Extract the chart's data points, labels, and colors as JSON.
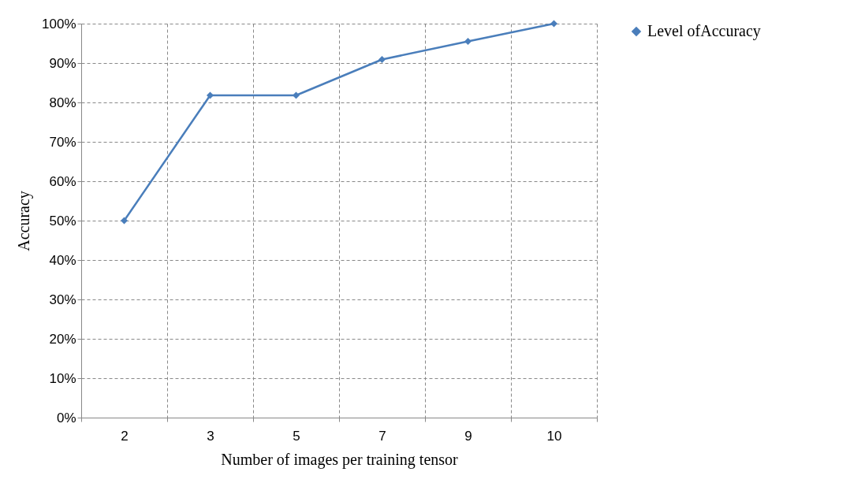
{
  "chart_data": {
    "type": "line",
    "xlabel": "Number of images per training tensor",
    "ylabel": "Accuracy",
    "categories": [
      "2",
      "3",
      "5",
      "7",
      "9",
      "10"
    ],
    "series": [
      {
        "name": "Level ofAccuracy",
        "color": "#4a7ebb",
        "values": [
          50,
          81.8,
          81.8,
          90.9,
          95.5,
          100
        ]
      }
    ],
    "ylim": [
      0,
      100
    ],
    "yticks": [
      {
        "value": 0,
        "label": "0%"
      },
      {
        "value": 10,
        "label": "10%"
      },
      {
        "value": 20,
        "label": "20%"
      },
      {
        "value": 30,
        "label": "30%"
      },
      {
        "value": 40,
        "label": "40%"
      },
      {
        "value": 50,
        "label": "50%"
      },
      {
        "value": 60,
        "label": "60%"
      },
      {
        "value": 70,
        "label": "70%"
      },
      {
        "value": 80,
        "label": "80%"
      },
      {
        "value": 90,
        "label": "90%"
      },
      {
        "value": 100,
        "label": "100%"
      }
    ],
    "grid": true,
    "legend": "right",
    "marker": "diamond",
    "line_style": "solid"
  }
}
